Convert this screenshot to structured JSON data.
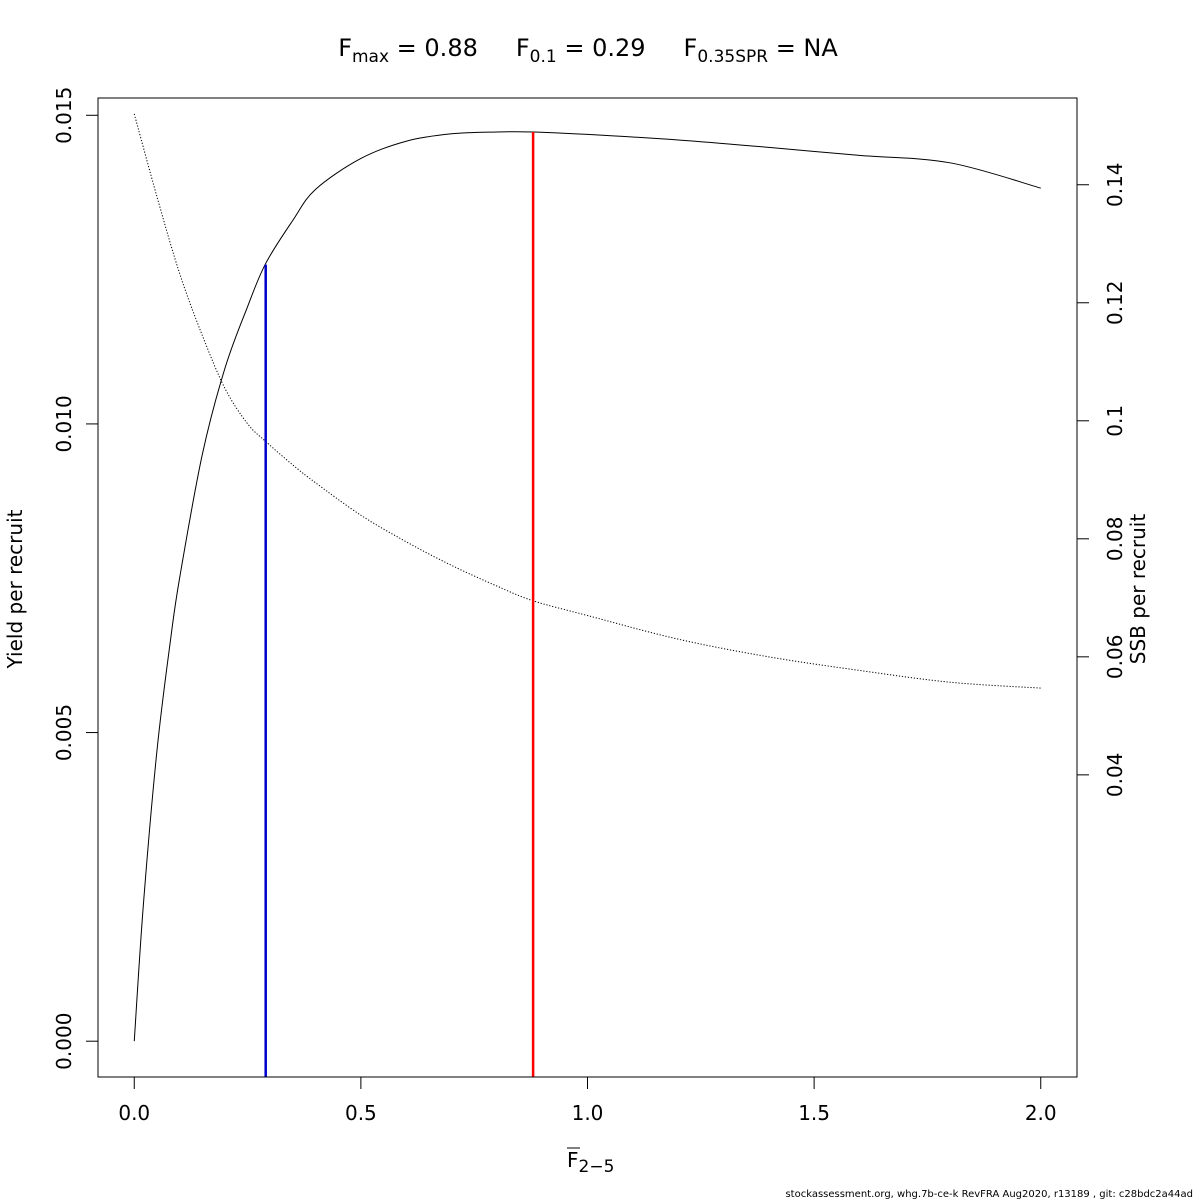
{
  "chart_data": {
    "type": "line",
    "title": {
      "fmax": {
        "base": "F",
        "sub": "max",
        "rest": " = 0.88"
      },
      "f01": {
        "base": "F",
        "sub": "0.1",
        "rest": " = 0.29"
      },
      "fspr": {
        "base": "F",
        "sub": "0.35SPR",
        "rest": " = NA"
      }
    },
    "xlabel": {
      "base": "F",
      "sub": "2−5"
    },
    "ylabel": "Yield per recruit",
    "y2label": "SSB per recruit",
    "xlim": [
      -0.08,
      2.08
    ],
    "ylim": [
      -0.00058,
      0.01528
    ],
    "y2lim": [
      -0.0112,
      0.1547
    ],
    "x_ticks": [
      0.0,
      0.5,
      1.0,
      1.5,
      2.0
    ],
    "x_tick_labels": [
      "0.0",
      "0.5",
      "1.0",
      "1.5",
      "2.0"
    ],
    "y_ticks": [
      0.0,
      0.005,
      0.01,
      0.015
    ],
    "y_tick_labels": [
      "0.000",
      "0.005",
      "0.010",
      "0.015"
    ],
    "y2_ticks": [
      0.04,
      0.06,
      0.08,
      0.1,
      0.12,
      0.14
    ],
    "y2_tick_labels": [
      "0.04",
      "0.06",
      "0.08",
      "0.1",
      "0.12",
      "0.14"
    ],
    "series": [
      {
        "axis": "left",
        "style": "solid",
        "color": "#000000",
        "x": [
          0.0,
          0.02,
          0.05,
          0.08,
          0.1,
          0.15,
          0.2,
          0.25,
          0.29,
          0.35,
          0.4,
          0.5,
          0.6,
          0.7,
          0.8,
          0.88,
          1.0,
          1.2,
          1.4,
          1.6,
          1.8,
          2.0
        ],
        "y": [
          0.0,
          0.0022,
          0.0047,
          0.0065,
          0.0075,
          0.0095,
          0.0109,
          0.0119,
          0.0126,
          0.0133,
          0.0138,
          0.0143,
          0.01458,
          0.0147,
          0.01473,
          0.01473,
          0.01469,
          0.0146,
          0.01448,
          0.01435,
          0.01423,
          0.01382
        ]
      },
      {
        "axis": "right",
        "style": "dotted",
        "color": "#000000",
        "x": [
          0.0,
          0.05,
          0.1,
          0.15,
          0.2,
          0.25,
          0.29,
          0.35,
          0.4,
          0.5,
          0.6,
          0.7,
          0.8,
          0.88,
          1.0,
          1.2,
          1.4,
          1.6,
          1.8,
          2.0
        ],
        "y": [
          0.152,
          0.138,
          0.125,
          0.1145,
          0.1055,
          0.0995,
          0.0965,
          0.0925,
          0.0895,
          0.084,
          0.0795,
          0.0755,
          0.072,
          0.0695,
          0.067,
          0.063,
          0.06,
          0.0577,
          0.0557,
          0.0547
        ]
      }
    ],
    "reference_lines": [
      {
        "name": "F0.1",
        "x": 0.29,
        "y_top": 0.01258,
        "color": "#0000cc"
      },
      {
        "name": "Fmax",
        "x": 0.88,
        "y_top": 0.01473,
        "color": "#ff0000"
      }
    ]
  },
  "footer": "stockassessment.org, whg.7b-ce-k  RevFRA  Aug2020, r13189 , git: c28bdc2a44ad"
}
